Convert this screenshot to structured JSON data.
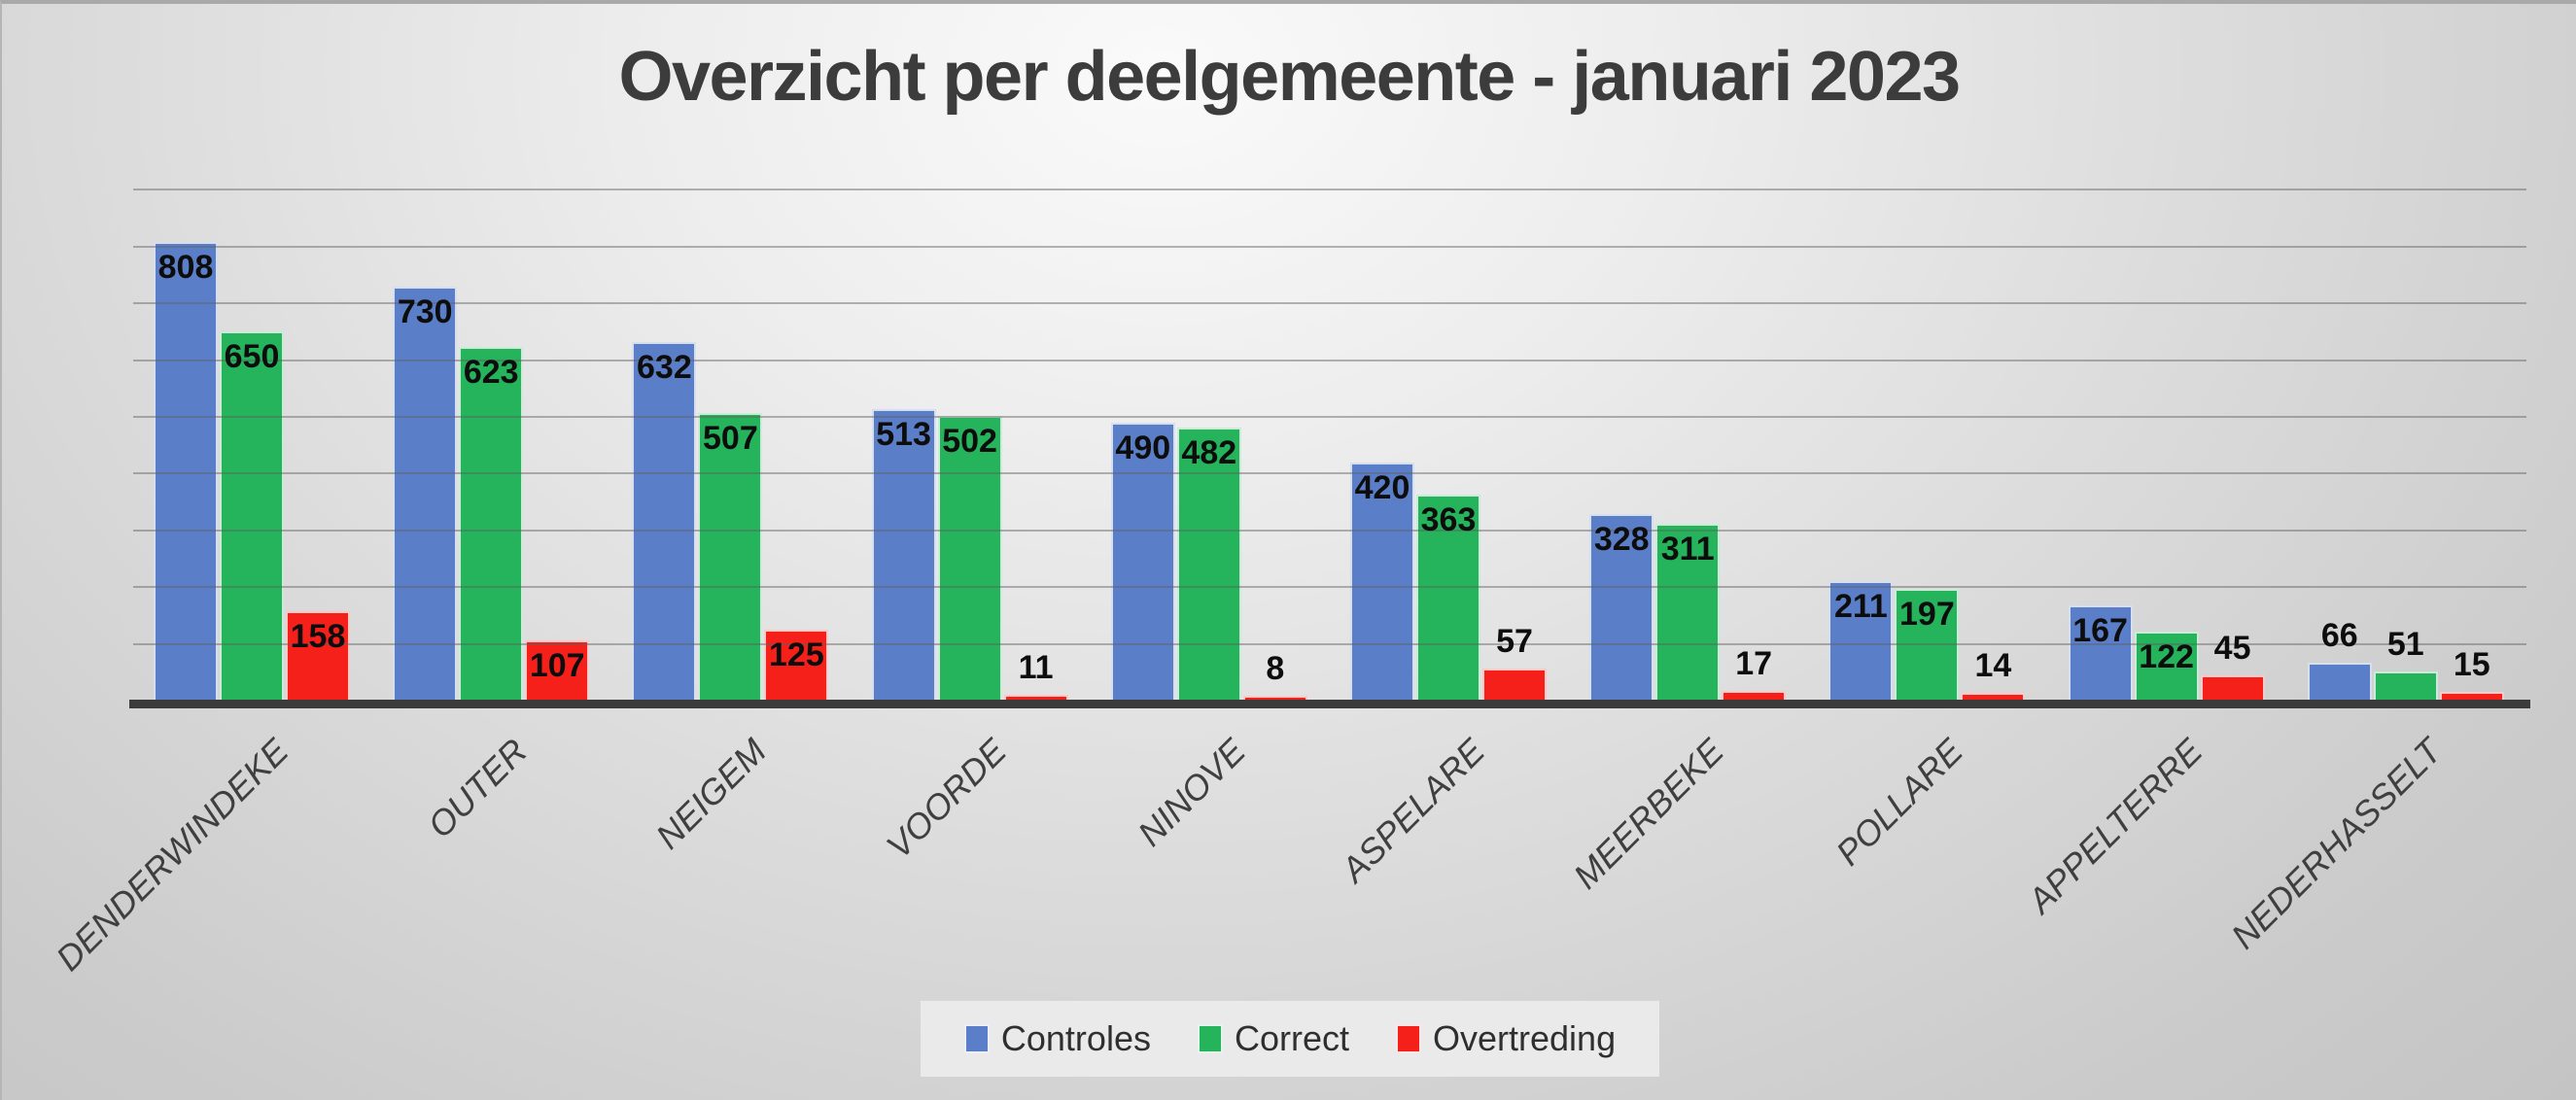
{
  "chart_data": {
    "type": "bar",
    "title": "Overzicht per deelgemeente - januari 2023",
    "categories": [
      "DENDERWINDEKE",
      "OUTER",
      "NEIGEM",
      "VOORDE",
      "NINOVE",
      "ASPELARE",
      "MEERBEKE",
      "POLLARE",
      "APPELTERRE",
      "NEDERHASSELT"
    ],
    "series": [
      {
        "name": "Controles",
        "color": "#5B7EC8",
        "values": [
          808,
          730,
          632,
          513,
          490,
          420,
          328,
          211,
          167,
          66
        ]
      },
      {
        "name": "Correct",
        "color": "#25B35C",
        "values": [
          650,
          623,
          507,
          502,
          482,
          363,
          311,
          197,
          122,
          51
        ]
      },
      {
        "name": "Overtreding",
        "color": "#F5201A",
        "values": [
          158,
          107,
          125,
          11,
          8,
          57,
          17,
          14,
          45,
          15
        ]
      }
    ],
    "ylim": [
      0,
      1000
    ],
    "gridline_step": 100,
    "y_axis_tick_labels_visible": false,
    "category_label_rotation_deg": 45,
    "legend_position": "bottom",
    "data_label_rule": "every bar labeled in bold black; values under 100 shown above the bar, others inside the bar top",
    "colors": {
      "title_text": "#3c3c3c",
      "axis_line": "#3b3b3b",
      "gridline": "#9b9b9b",
      "category_text": "#3f3f3f",
      "legend_background": "#eaeaea",
      "background_light": "#fafafa",
      "background_dark": "#bdbdbd"
    }
  }
}
